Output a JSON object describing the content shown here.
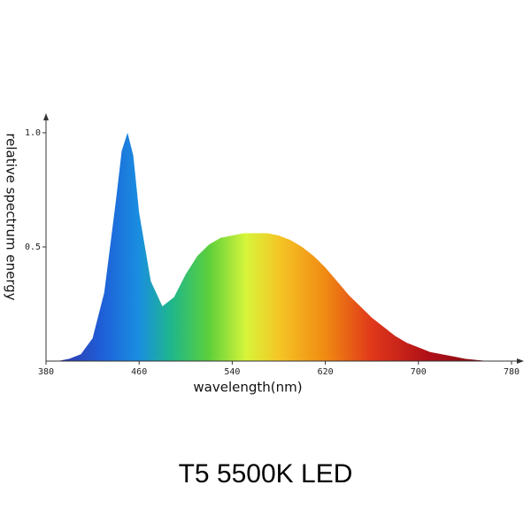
{
  "chart_data": {
    "type": "area",
    "title": "T5 5500K LED",
    "x_label": "wavelength(nm)",
    "y_label": "relative spectrum energy",
    "x": [
      380,
      390,
      400,
      410,
      420,
      430,
      440,
      445,
      450,
      455,
      460,
      470,
      480,
      490,
      500,
      510,
      520,
      530,
      540,
      550,
      560,
      570,
      580,
      590,
      600,
      610,
      620,
      630,
      640,
      650,
      660,
      670,
      680,
      690,
      700,
      710,
      720,
      730,
      740,
      750,
      760,
      770,
      780
    ],
    "values": [
      0,
      0,
      0.01,
      0.03,
      0.1,
      0.3,
      0.7,
      0.92,
      1.0,
      0.9,
      0.65,
      0.35,
      0.24,
      0.28,
      0.38,
      0.46,
      0.51,
      0.54,
      0.55,
      0.56,
      0.56,
      0.56,
      0.55,
      0.53,
      0.5,
      0.46,
      0.41,
      0.35,
      0.29,
      0.24,
      0.19,
      0.15,
      0.11,
      0.08,
      0.06,
      0.04,
      0.03,
      0.02,
      0.01,
      0.005,
      0,
      0,
      0
    ],
    "xlim": [
      380,
      780
    ],
    "xticks": [
      380,
      460,
      540,
      620,
      700,
      780
    ],
    "ylim": [
      0,
      1
    ],
    "yticks": [
      0.5,
      {
        "value": 1,
        "label": "1.0"
      }
    ]
  }
}
